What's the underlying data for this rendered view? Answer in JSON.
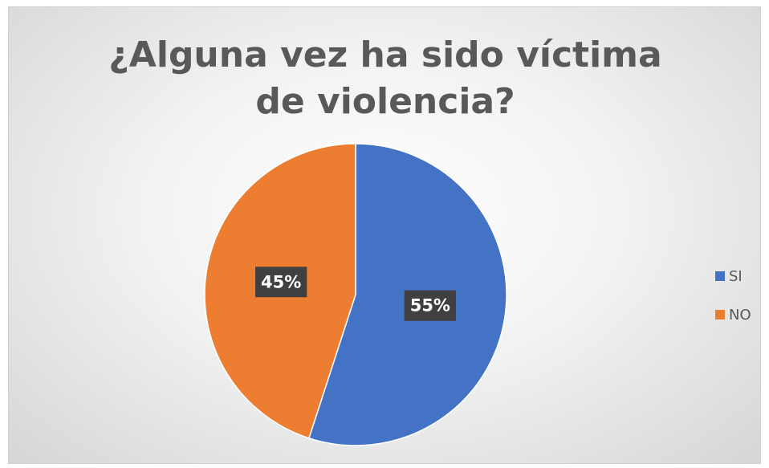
{
  "chart_data": {
    "type": "pie",
    "title": "¿Alguna vez ha sido víctima de violencia?",
    "categories": [
      "SI",
      "NO"
    ],
    "values": [
      55,
      45
    ],
    "value_labels": [
      "55%",
      "45%"
    ],
    "colors": [
      "#4472c4",
      "#ed7d31"
    ],
    "legend": "right"
  }
}
